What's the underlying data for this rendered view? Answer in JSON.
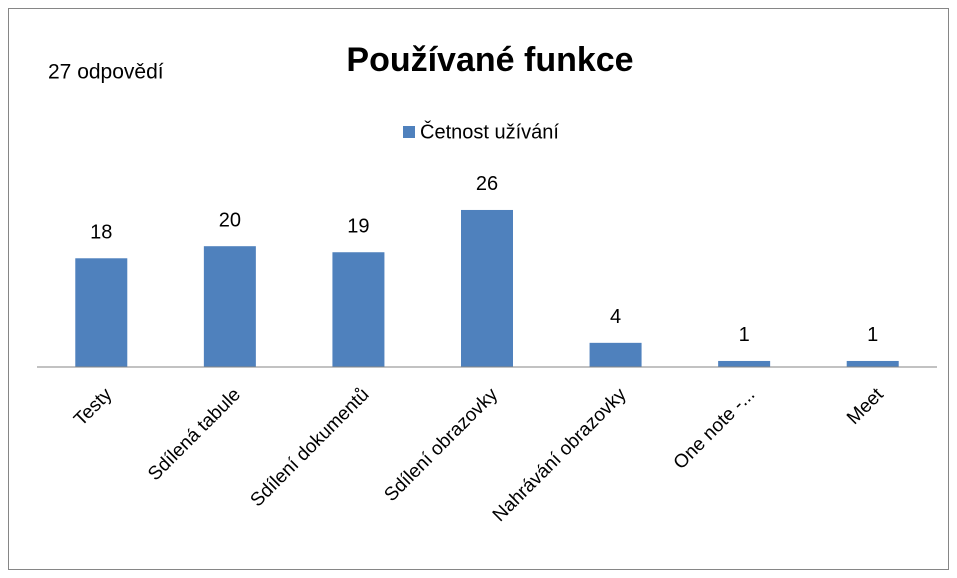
{
  "chart_data": {
    "type": "bar",
    "title": "Používané funkce",
    "annotation": "27 odpovědí",
    "categories": [
      "Testy",
      "Sdílená tabule",
      "Sdílení dokumentů",
      "Sdílení obrazovky",
      "Nahrávání obrazovky",
      "One note -...",
      "Meet"
    ],
    "series": [
      {
        "name": "Četnost užívání",
        "color": "#4f81bd",
        "values": [
          18,
          20,
          19,
          26,
          4,
          1,
          1
        ]
      }
    ],
    "legend": "top"
  }
}
